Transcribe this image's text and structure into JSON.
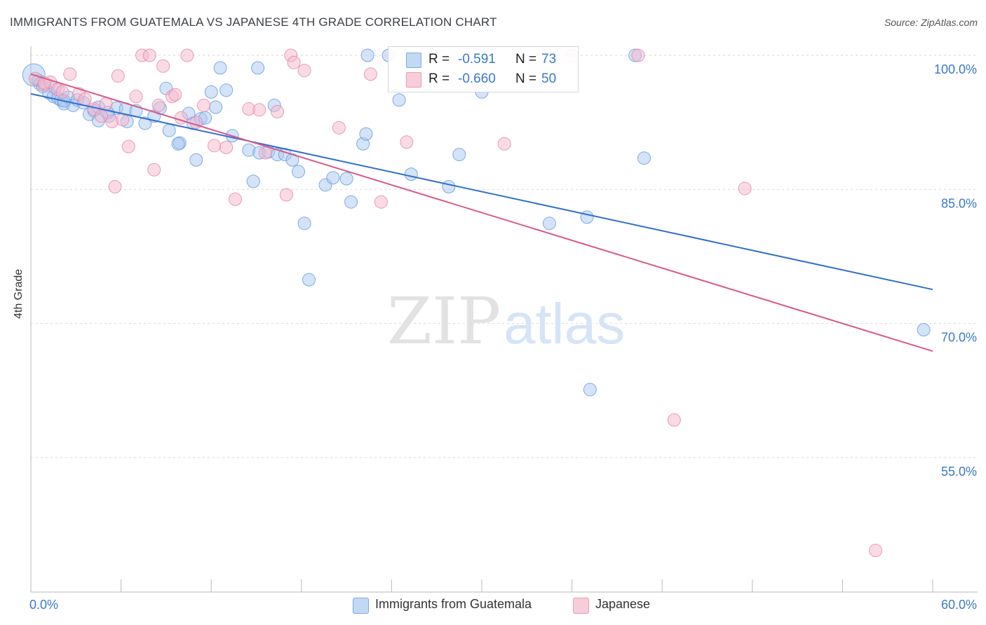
{
  "header": {
    "title": "IMMIGRANTS FROM GUATEMALA VS JAPANESE 4TH GRADE CORRELATION CHART",
    "source": "Source: ZipAtlas.com"
  },
  "watermark": {
    "zip": "ZIP",
    "atlas": "atlas"
  },
  "legend_top": {
    "rows": [
      {
        "r_label": "R =",
        "r_value": "-0.591",
        "n_label": "N =",
        "n_value": "73",
        "color": "#a9c8f0"
      },
      {
        "r_label": "R =",
        "r_value": "-0.660",
        "n_label": "N =",
        "n_value": "50",
        "color": "#f5b8cc"
      }
    ]
  },
  "chart_data": {
    "type": "scatter",
    "title": "IMMIGRANTS FROM GUATEMALA VS JAPANESE 4TH GRADE CORRELATION CHART",
    "xlabel": "",
    "ylabel": "4th Grade",
    "xlim": [
      0,
      60
    ],
    "ylim": [
      37,
      101
    ],
    "x_ticks": [
      "0.0%",
      "60.0%"
    ],
    "y_ticks": [
      {
        "value": 100,
        "label": "100.0%"
      },
      {
        "value": 85,
        "label": "85.0%"
      },
      {
        "value": 70,
        "label": "70.0%"
      },
      {
        "value": 55,
        "label": "55.0%"
      }
    ],
    "grid": "horizontal dashed",
    "legend_position": "bottom-center",
    "series": [
      {
        "name": "Immigrants from Guatemala",
        "color": "#6a9fe0",
        "fill": "#a9c8f0",
        "trend": {
          "x": [
            0,
            60
          ],
          "y": [
            95.7,
            73.8
          ],
          "color": "#2f6fd0"
        },
        "points": [
          [
            0.2,
            97.8
          ],
          [
            0.5,
            97.2
          ],
          [
            0.6,
            96.8
          ],
          [
            0.8,
            96.5
          ],
          [
            1.2,
            95.8
          ],
          [
            1.5,
            95.4
          ],
          [
            1.6,
            96.4
          ],
          [
            1.8,
            95.2
          ],
          [
            2.0,
            95.0
          ],
          [
            2.2,
            94.6
          ],
          [
            2.5,
            95.3
          ],
          [
            2.8,
            94.4
          ],
          [
            3.1,
            95.0
          ],
          [
            3.5,
            94.7
          ],
          [
            3.9,
            93.4
          ],
          [
            4.2,
            93.8
          ],
          [
            4.5,
            94.2
          ],
          [
            5.2,
            93.2
          ],
          [
            5.7,
            94.1
          ],
          [
            6.3,
            94.0
          ],
          [
            6.4,
            92.6
          ],
          [
            7.0,
            93.8
          ],
          [
            7.6,
            92.4
          ],
          [
            8.2,
            93.2
          ],
          [
            8.6,
            94.1
          ],
          [
            9.0,
            96.3
          ],
          [
            9.2,
            91.6
          ],
          [
            9.9,
            90.2
          ],
          [
            10.5,
            93.5
          ],
          [
            10.8,
            92.4
          ],
          [
            11.0,
            88.3
          ],
          [
            11.3,
            92.9
          ],
          [
            12.0,
            95.9
          ],
          [
            12.3,
            94.2
          ],
          [
            12.6,
            98.6
          ],
          [
            13.0,
            96.1
          ],
          [
            13.4,
            91.0
          ],
          [
            14.5,
            89.4
          ],
          [
            14.8,
            85.9
          ],
          [
            15.1,
            98.6
          ],
          [
            15.2,
            89.1
          ],
          [
            15.8,
            89.2
          ],
          [
            16.2,
            94.4
          ],
          [
            16.4,
            88.9
          ],
          [
            16.9,
            88.9
          ],
          [
            17.4,
            88.3
          ],
          [
            17.8,
            87.0
          ],
          [
            18.2,
            81.2
          ],
          [
            18.5,
            74.9
          ],
          [
            19.6,
            85.5
          ],
          [
            20.1,
            86.3
          ],
          [
            21.0,
            86.2
          ],
          [
            21.3,
            83.6
          ],
          [
            22.1,
            90.1
          ],
          [
            22.3,
            91.2
          ],
          [
            22.4,
            100.0
          ],
          [
            23.8,
            100.0
          ],
          [
            24.5,
            95.0
          ],
          [
            25.3,
            86.7
          ],
          [
            27.8,
            85.3
          ],
          [
            28.5,
            88.9
          ],
          [
            30.0,
            95.9
          ],
          [
            34.5,
            81.2
          ],
          [
            37.0,
            81.9
          ],
          [
            37.2,
            62.6
          ],
          [
            40.2,
            100.0
          ],
          [
            40.8,
            88.5
          ],
          [
            59.4,
            69.3
          ],
          [
            4.5,
            92.7
          ],
          [
            2.2,
            94.9
          ],
          [
            9.8,
            90.1
          ],
          [
            11.6,
            93.0
          ],
          [
            5.1,
            93.6
          ]
        ]
      },
      {
        "name": "Japanese",
        "color": "#e88aaa",
        "fill": "#f5b8cc",
        "trend": {
          "x": [
            0,
            60
          ],
          "y": [
            97.9,
            66.9
          ],
          "color": "#d9588a"
        },
        "points": [
          [
            0.3,
            97.4
          ],
          [
            0.9,
            96.7
          ],
          [
            1.3,
            97.0
          ],
          [
            1.8,
            96.2
          ],
          [
            2.1,
            95.9
          ],
          [
            2.6,
            97.9
          ],
          [
            3.2,
            95.7
          ],
          [
            3.6,
            95.1
          ],
          [
            4.2,
            94.0
          ],
          [
            4.7,
            93.2
          ],
          [
            5.0,
            94.6
          ],
          [
            5.4,
            92.6
          ],
          [
            5.6,
            85.3
          ],
          [
            5.8,
            97.7
          ],
          [
            6.1,
            92.8
          ],
          [
            6.5,
            89.8
          ],
          [
            7.0,
            95.4
          ],
          [
            7.4,
            100.0
          ],
          [
            7.9,
            100.0
          ],
          [
            8.2,
            87.2
          ],
          [
            8.5,
            94.4
          ],
          [
            8.8,
            98.8
          ],
          [
            9.4,
            95.4
          ],
          [
            9.6,
            95.6
          ],
          [
            10.0,
            93.0
          ],
          [
            10.4,
            100.0
          ],
          [
            11.0,
            92.5
          ],
          [
            11.5,
            94.4
          ],
          [
            12.2,
            89.9
          ],
          [
            13.0,
            89.7
          ],
          [
            13.6,
            83.9
          ],
          [
            14.5,
            94.0
          ],
          [
            15.2,
            93.9
          ],
          [
            15.6,
            89.1
          ],
          [
            16.4,
            93.7
          ],
          [
            17.0,
            84.4
          ],
          [
            17.3,
            100.0
          ],
          [
            17.5,
            99.2
          ],
          [
            18.2,
            98.3
          ],
          [
            20.5,
            91.9
          ],
          [
            22.6,
            97.9
          ],
          [
            23.3,
            83.6
          ],
          [
            25.0,
            90.3
          ],
          [
            31.5,
            90.1
          ],
          [
            36.0,
            100.0
          ],
          [
            40.4,
            100.0
          ],
          [
            47.5,
            85.1
          ],
          [
            42.8,
            59.2
          ],
          [
            56.2,
            44.6
          ],
          [
            0.9,
            96.9
          ]
        ]
      }
    ]
  },
  "legend_bottom": {
    "items": [
      {
        "label": "Immigrants from Guatemala",
        "color": "#a9c8f0"
      },
      {
        "label": "Japanese",
        "color": "#f5b8cc"
      }
    ]
  }
}
